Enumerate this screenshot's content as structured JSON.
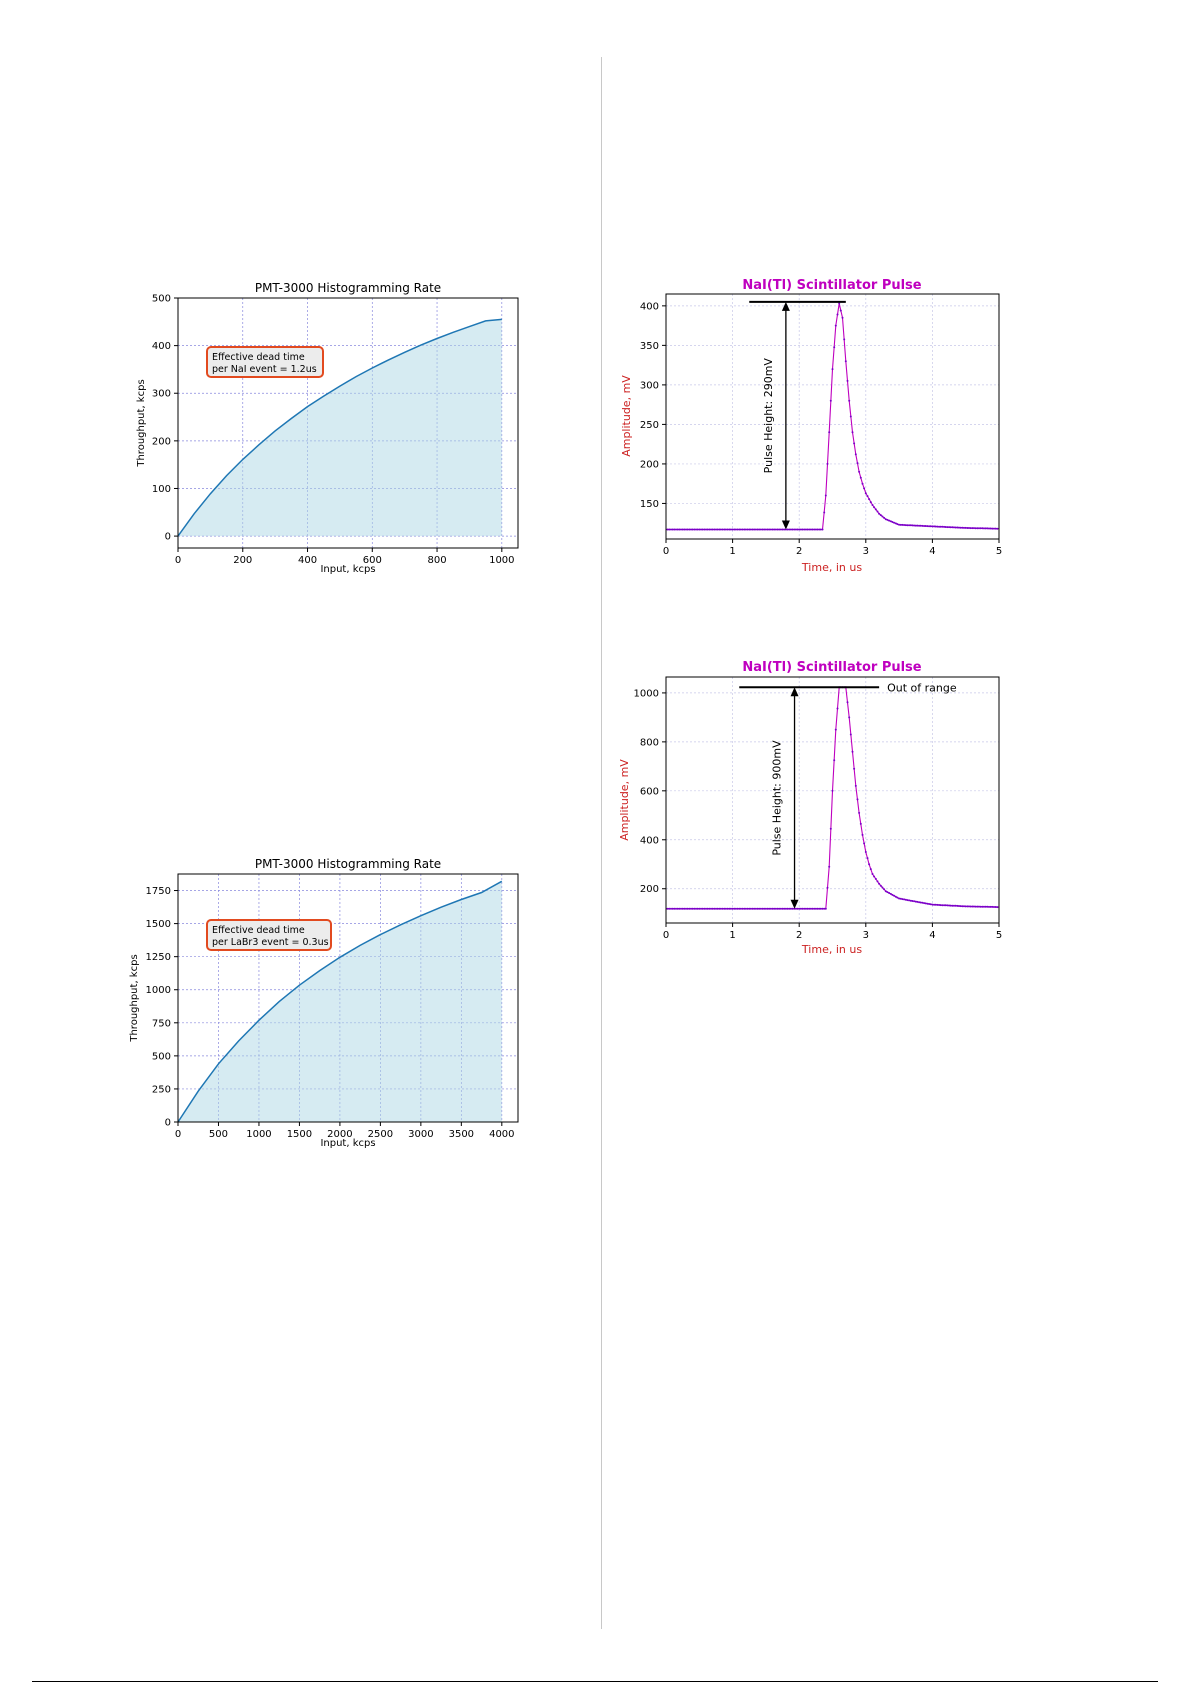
{
  "chart_data": [
    {
      "id": "nai-rate",
      "type": "area",
      "title": "PMT-3000 Histogramming Rate",
      "xlabel": "Input, kcps",
      "ylabel": "Throughput, kcps",
      "xlim": [
        0,
        1050
      ],
      "ylim": [
        -25,
        500
      ],
      "xticks": [
        0,
        200,
        400,
        600,
        800,
        1000
      ],
      "yticks": [
        0,
        100,
        200,
        300,
        400,
        500
      ],
      "grid": true,
      "annotation": [
        "Effective dead time",
        "per NaI event = 1.2us"
      ],
      "series": [
        {
          "x": [
            0,
            50,
            100,
            150,
            200,
            250,
            300,
            350,
            400,
            450,
            500,
            550,
            600,
            650,
            700,
            750,
            800,
            850,
            900,
            950,
            1000
          ],
          "values": [
            0,
            47,
            89,
            127,
            161,
            192,
            221,
            247,
            272,
            294,
            315,
            335,
            353,
            370,
            386,
            401,
            415,
            428,
            440,
            452,
            455
          ]
        }
      ],
      "colors": {
        "line": "#1f77b4",
        "fill": "#add8e6"
      }
    },
    {
      "id": "labr3-rate",
      "type": "area",
      "title": "PMT-3000 Histogramming Rate",
      "xlabel": "Input, kcps",
      "ylabel": "Throughput, kcps",
      "xlim": [
        0,
        4200
      ],
      "ylim": [
        0,
        1875
      ],
      "xticks": [
        0,
        500,
        1000,
        1500,
        2000,
        2500,
        3000,
        3500,
        4000
      ],
      "yticks": [
        0,
        250,
        500,
        750,
        1000,
        1250,
        1500,
        1750
      ],
      "grid": true,
      "annotation": [
        "Effective dead time",
        "per LaBr3 event = 0.3us"
      ],
      "series": [
        {
          "x": [
            0,
            250,
            500,
            750,
            1000,
            1250,
            1500,
            1750,
            2000,
            2250,
            2500,
            2750,
            3000,
            3250,
            3500,
            3750,
            4000
          ],
          "values": [
            0,
            233,
            440,
            613,
            770,
            910,
            1034,
            1145,
            1245,
            1335,
            1417,
            1491,
            1560,
            1624,
            1682,
            1735,
            1820
          ]
        }
      ],
      "colors": {
        "line": "#1f77b4",
        "fill": "#add8e6"
      }
    },
    {
      "id": "pulse-290",
      "type": "line",
      "title": "NaI(Tl) Scintillator Pulse",
      "xlabel": "Time, in us",
      "ylabel": "Amplitude, mV",
      "xlim": [
        0,
        5
      ],
      "ylim": [
        105,
        415
      ],
      "xticks": [
        0,
        1,
        2,
        3,
        4,
        5
      ],
      "yticks": [
        150,
        200,
        250,
        300,
        350,
        400
      ],
      "grid": true,
      "marker_line": {
        "x": [
          1.25,
          2.7
        ],
        "y": 405
      },
      "arrow": {
        "x": 1.8,
        "y": [
          405,
          117
        ]
      },
      "arrow_label": "Pulse Height: 290mV",
      "series": [
        {
          "x": [
            0,
            0.5,
            1,
            1.5,
            2,
            2.35,
            2.4,
            2.45,
            2.5,
            2.55,
            2.6,
            2.65,
            2.7,
            2.75,
            2.8,
            2.85,
            2.9,
            2.95,
            3.0,
            3.1,
            3.2,
            3.3,
            3.5,
            4,
            4.5,
            5
          ],
          "values": [
            117,
            117,
            117,
            117,
            117,
            117,
            160,
            240,
            320,
            375,
            403,
            385,
            330,
            280,
            240,
            212,
            190,
            175,
            163,
            148,
            137,
            130,
            123,
            121,
            119,
            118
          ]
        }
      ],
      "colors": {
        "line": "#bf00bf",
        "points": "#7a00c8"
      }
    },
    {
      "id": "pulse-900",
      "type": "line",
      "title": "NaI(Tl) Scintillator Pulse",
      "xlabel": "Time, in us",
      "ylabel": "Amplitude, mV",
      "xlim": [
        0,
        5
      ],
      "ylim": [
        60,
        1065
      ],
      "xticks": [
        0,
        1,
        2,
        3,
        4,
        5
      ],
      "yticks": [
        200,
        400,
        600,
        800,
        1000
      ],
      "grid": true,
      "marker_line": {
        "x": [
          1.1,
          3.2
        ],
        "y": 1023
      },
      "marker_label": "Out of range",
      "arrow": {
        "x": 1.93,
        "y": [
          1023,
          118
        ]
      },
      "arrow_label": "Pulse Height: 900mV",
      "series": [
        {
          "x": [
            0,
            0.5,
            1,
            1.5,
            2,
            2.4,
            2.45,
            2.5,
            2.55,
            2.6,
            2.7,
            2.75,
            2.8,
            2.85,
            2.9,
            2.95,
            3.0,
            3.05,
            3.1,
            3.2,
            3.3,
            3.5,
            4,
            4.5,
            5
          ],
          "values": [
            118,
            118,
            118,
            118,
            118,
            118,
            290,
            600,
            850,
            1023,
            1023,
            900,
            760,
            620,
            510,
            420,
            350,
            300,
            260,
            220,
            190,
            160,
            135,
            128,
            125
          ]
        }
      ],
      "colors": {
        "line": "#bf00bf",
        "points": "#7a00c8"
      }
    }
  ]
}
